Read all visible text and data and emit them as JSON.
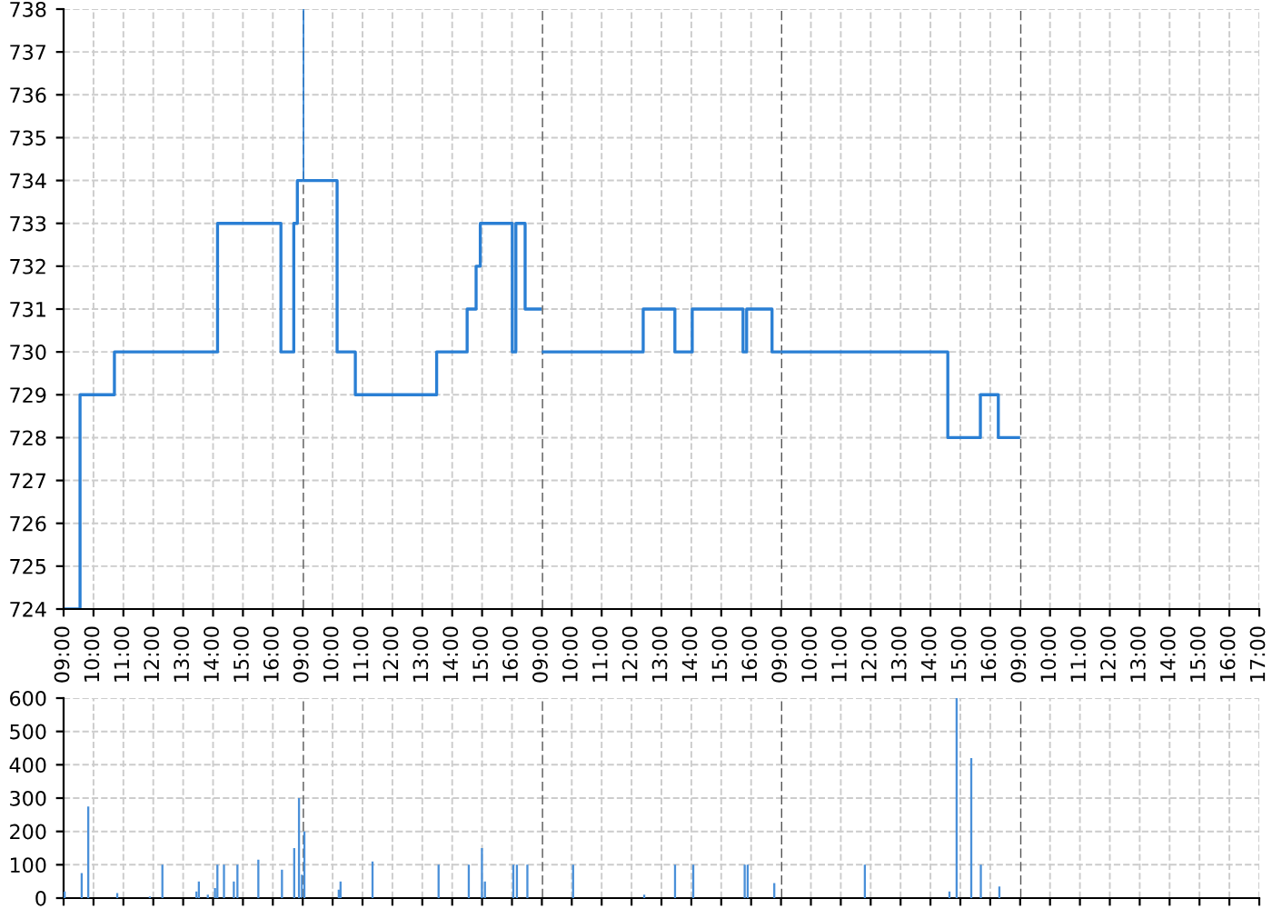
{
  "chart_data": [
    {
      "type": "step",
      "x": [
        9,
        9.55,
        10.7,
        14.15,
        16.27,
        16.7,
        16.82,
        17
      ],
      "series": [
        {
          "color": "#2a7fd4",
          "values": [
            724,
            729,
            730,
            733,
            730,
            733,
            734,
            734
          ]
        }
      ],
      "xlim": [
        9,
        17
      ],
      "ylim": [
        724,
        738
      ],
      "yticks": [
        724,
        725,
        726,
        727,
        728,
        729,
        730,
        731,
        732,
        733,
        734,
        735,
        736,
        737,
        738
      ],
      "xticks": [
        {
          "value": 9,
          "label": "09:00"
        },
        {
          "value": 10,
          "label": "10:00"
        },
        {
          "value": 11,
          "label": "11:00"
        },
        {
          "value": 12,
          "label": "12:00"
        },
        {
          "value": 13,
          "label": "13:00"
        },
        {
          "value": 14,
          "label": "14:00"
        },
        {
          "value": 15,
          "label": "15:00"
        },
        {
          "value": 16,
          "label": "16:00"
        }
      ],
      "grid": true,
      "line_style": "solid"
    },
    {
      "type": "step",
      "x": [
        9,
        9,
        10.15,
        10.76,
        13.48,
        14.5,
        14.8,
        14.94,
        16.01,
        16.13,
        16.44,
        17
      ],
      "series": [
        {
          "color": "#2a7fd4",
          "values": [
            738,
            734,
            730,
            729,
            730,
            731,
            732,
            733,
            730,
            733,
            731,
            731
          ]
        }
      ],
      "xlim": [
        9,
        17
      ],
      "ylim": [
        724,
        738
      ],
      "yticks": [
        724,
        725,
        726,
        727,
        728,
        729,
        730,
        731,
        732,
        733,
        734,
        735,
        736,
        737,
        738
      ],
      "xticks": [
        {
          "value": 9,
          "label": "09:00"
        },
        {
          "value": 10,
          "label": "10:00"
        },
        {
          "value": 11,
          "label": "11:00"
        },
        {
          "value": 12,
          "label": "12:00"
        },
        {
          "value": 13,
          "label": "13:00"
        },
        {
          "value": 14,
          "label": "14:00"
        },
        {
          "value": 15,
          "label": "15:00"
        },
        {
          "value": 16,
          "label": "16:00"
        }
      ],
      "ref_lines": [
        {
          "axis": "x",
          "value": 9,
          "color": "#555555",
          "line_style": "dashed"
        }
      ],
      "grid": true,
      "tick_labels": "x",
      "line_style": "solid"
    },
    {
      "type": "step",
      "x": [
        9,
        12.39,
        13.45,
        14.03,
        15.73,
        15.85,
        16.7,
        17
      ],
      "series": [
        {
          "color": "#2a7fd4",
          "values": [
            730,
            731,
            730,
            731,
            730,
            731,
            730,
            730
          ]
        }
      ],
      "xlim": [
        9,
        17
      ],
      "ylim": [
        724,
        738
      ],
      "yticks": [
        724,
        725,
        726,
        727,
        728,
        729,
        730,
        731,
        732,
        733,
        734,
        735,
        736,
        737,
        738
      ],
      "xticks": [
        {
          "value": 9,
          "label": "09:00"
        },
        {
          "value": 10,
          "label": "10:00"
        },
        {
          "value": 11,
          "label": "11:00"
        },
        {
          "value": 12,
          "label": "12:00"
        },
        {
          "value": 13,
          "label": "13:00"
        },
        {
          "value": 14,
          "label": "14:00"
        },
        {
          "value": 15,
          "label": "15:00"
        },
        {
          "value": 16,
          "label": "16:00"
        }
      ],
      "ref_lines": [
        {
          "axis": "x",
          "value": 9,
          "color": "#555555",
          "line_style": "dashed"
        }
      ],
      "grid": true,
      "tick_labels": "x",
      "line_style": "solid"
    },
    {
      "type": "step",
      "x": [
        9,
        14.58,
        15.67,
        16.27,
        17
      ],
      "series": [
        {
          "color": "#2a7fd4",
          "values": [
            730,
            728,
            729,
            728,
            728
          ]
        }
      ],
      "xlim": [
        9,
        17
      ],
      "ylim": [
        724,
        738
      ],
      "yticks": [
        724,
        725,
        726,
        727,
        728,
        729,
        730,
        731,
        732,
        733,
        734,
        735,
        736,
        737,
        738
      ],
      "xticks": [
        {
          "value": 9,
          "label": "09:00"
        },
        {
          "value": 10,
          "label": "10:00"
        },
        {
          "value": 11,
          "label": "11:00"
        },
        {
          "value": 12,
          "label": "12:00"
        },
        {
          "value": 13,
          "label": "13:00"
        },
        {
          "value": 14,
          "label": "14:00"
        },
        {
          "value": 15,
          "label": "15:00"
        },
        {
          "value": 16,
          "label": "16:00"
        }
      ],
      "ref_lines": [
        {
          "axis": "x",
          "value": 9,
          "color": "#555555",
          "line_style": "dashed"
        }
      ],
      "grid": true,
      "tick_labels": "x",
      "line_style": "solid"
    },
    {
      "type": "step",
      "xlim": [
        9,
        17
      ],
      "ylim": [
        724,
        738
      ],
      "yticks": [
        724,
        725,
        726,
        727,
        728,
        729,
        730,
        731,
        732,
        733,
        734,
        735,
        736,
        737,
        738
      ],
      "xticks": [
        {
          "value": 9,
          "label": "09:00"
        },
        {
          "value": 10,
          "label": "10:00"
        },
        {
          "value": 11,
          "label": "11:00"
        },
        {
          "value": 12,
          "label": "12:00"
        },
        {
          "value": 13,
          "label": "13:00"
        },
        {
          "value": 14,
          "label": "14:00"
        },
        {
          "value": 15,
          "label": "15:00"
        },
        {
          "value": 16,
          "label": "16:00"
        },
        {
          "value": 17,
          "label": "17:00"
        }
      ],
      "ref_lines": [
        {
          "axis": "x",
          "value": 9,
          "color": "#555555",
          "line_style": "dashed"
        }
      ],
      "grid": true,
      "tick_labels": "x"
    },
    {
      "type": "bar",
      "x": [
        9,
        9.57,
        9.79,
        10.76,
        11.85,
        12.27,
        13.41,
        13.49,
        13.79,
        14.03,
        14.11,
        14.33,
        14.66,
        14.78,
        15.48,
        16.27,
        16.68,
        16.84,
        16.94
      ],
      "series": [
        {
          "color": "#4a90d9",
          "values": [
            20,
            75,
            275,
            15,
            5,
            100,
            20,
            50,
            10,
            30,
            100,
            100,
            50,
            100,
            115,
            85,
            150,
            300,
            70
          ]
        }
      ],
      "xlim": [
        9,
        17
      ],
      "ylim": [
        0,
        600
      ],
      "yticks": [
        0,
        100,
        200,
        300,
        400,
        500,
        600
      ],
      "xticks": [
        {
          "value": 9,
          "label": null
        },
        {
          "value": 10,
          "label": null
        },
        {
          "value": 11,
          "label": null
        },
        {
          "value": 12,
          "label": null
        },
        {
          "value": 13,
          "label": null
        },
        {
          "value": 14,
          "label": null
        },
        {
          "value": 15,
          "label": null
        },
        {
          "value": 16,
          "label": null
        }
      ],
      "grid": true,
      "tick_labels": "y"
    },
    {
      "type": "bar",
      "x": [
        9.02,
        10.17,
        10.23,
        11.3,
        13.51,
        14.52,
        14.96,
        15.06,
        16.01,
        16.13,
        16.48
      ],
      "series": [
        {
          "color": "#4a90d9",
          "values": [
            200,
            25,
            50,
            110,
            100,
            100,
            150,
            50,
            100,
            100,
            100
          ]
        }
      ],
      "xlim": [
        9,
        17
      ],
      "ylim": [
        0,
        600
      ],
      "yticks": [
        0,
        100,
        200,
        300,
        400,
        500,
        600
      ],
      "xticks": [
        {
          "value": 9,
          "label": null
        },
        {
          "value": 10,
          "label": null
        },
        {
          "value": 11,
          "label": null
        },
        {
          "value": 12,
          "label": null
        },
        {
          "value": 13,
          "label": null
        },
        {
          "value": 14,
          "label": null
        },
        {
          "value": 15,
          "label": null
        },
        {
          "value": 16,
          "label": null
        }
      ],
      "ref_lines": [
        {
          "axis": "x",
          "value": 9,
          "color": "#555555",
          "line_style": "dashed"
        }
      ],
      "grid": true,
      "tick_labels": false
    },
    {
      "type": "bar",
      "x": [
        10.01,
        12.39,
        13.42,
        14.03,
        15.75,
        15.85,
        16.74
      ],
      "series": [
        {
          "color": "#4a90d9",
          "values": [
            100,
            10,
            100,
            100,
            100,
            100,
            45
          ]
        }
      ],
      "xlim": [
        9,
        17
      ],
      "ylim": [
        0,
        600
      ],
      "yticks": [
        0,
        100,
        200,
        300,
        400,
        500,
        600
      ],
      "xticks": [
        {
          "value": 9,
          "label": null
        },
        {
          "value": 10,
          "label": null
        },
        {
          "value": 11,
          "label": null
        },
        {
          "value": 12,
          "label": null
        },
        {
          "value": 13,
          "label": null
        },
        {
          "value": 14,
          "label": null
        },
        {
          "value": 15,
          "label": null
        },
        {
          "value": 16,
          "label": null
        }
      ],
      "ref_lines": [
        {
          "axis": "x",
          "value": 9,
          "color": "#555555",
          "line_style": "dashed"
        }
      ],
      "grid": true,
      "tick_labels": false
    },
    {
      "type": "bar",
      "x": [
        11.77,
        14.6,
        14.84,
        15.33,
        15.65,
        16.27
      ],
      "series": [
        {
          "color": "#4a90d9",
          "values": [
            100,
            20,
            600,
            420,
            100,
            35
          ]
        }
      ],
      "xlim": [
        9,
        17
      ],
      "ylim": [
        0,
        600
      ],
      "yticks": [
        0,
        100,
        200,
        300,
        400,
        500,
        600
      ],
      "xticks": [
        {
          "value": 9,
          "label": null
        },
        {
          "value": 10,
          "label": null
        },
        {
          "value": 11,
          "label": null
        },
        {
          "value": 12,
          "label": null
        },
        {
          "value": 13,
          "label": null
        },
        {
          "value": 14,
          "label": null
        },
        {
          "value": 15,
          "label": null
        },
        {
          "value": 16,
          "label": null
        }
      ],
      "ref_lines": [
        {
          "axis": "x",
          "value": 9,
          "color": "#555555",
          "line_style": "dashed"
        }
      ],
      "grid": true,
      "tick_labels": false
    },
    {
      "type": "bar",
      "xlim": [
        9,
        17
      ],
      "ylim": [
        0,
        600
      ],
      "yticks": [
        0,
        100,
        200,
        300,
        400,
        500,
        600
      ],
      "xticks": [
        {
          "value": 9,
          "label": null
        },
        {
          "value": 10,
          "label": null
        },
        {
          "value": 11,
          "label": null
        },
        {
          "value": 12,
          "label": null
        },
        {
          "value": 13,
          "label": null
        },
        {
          "value": 14,
          "label": null
        },
        {
          "value": 15,
          "label": null
        },
        {
          "value": 16,
          "label": null
        },
        {
          "value": 17,
          "label": null
        }
      ],
      "ref_lines": [
        {
          "axis": "x",
          "value": 9,
          "color": "#555555",
          "line_style": "dashed"
        }
      ],
      "grid": true,
      "tick_labels": false
    }
  ]
}
